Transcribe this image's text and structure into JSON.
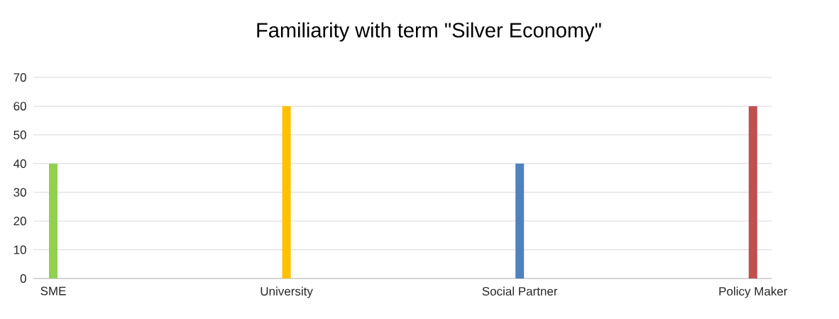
{
  "chart_data": {
    "type": "bar",
    "title": "Familiarity with term \"Silver Economy\"",
    "categories": [
      "SME",
      "University",
      "Social Partner",
      "Policy Maker"
    ],
    "values": [
      40,
      60,
      40,
      60
    ],
    "colors": [
      "#92d050",
      "#ffc000",
      "#4f81bd",
      "#c0504d"
    ],
    "ylim": [
      0,
      70
    ],
    "yticks": [
      0,
      10,
      20,
      30,
      40,
      50,
      60,
      70
    ],
    "grid": "y"
  }
}
